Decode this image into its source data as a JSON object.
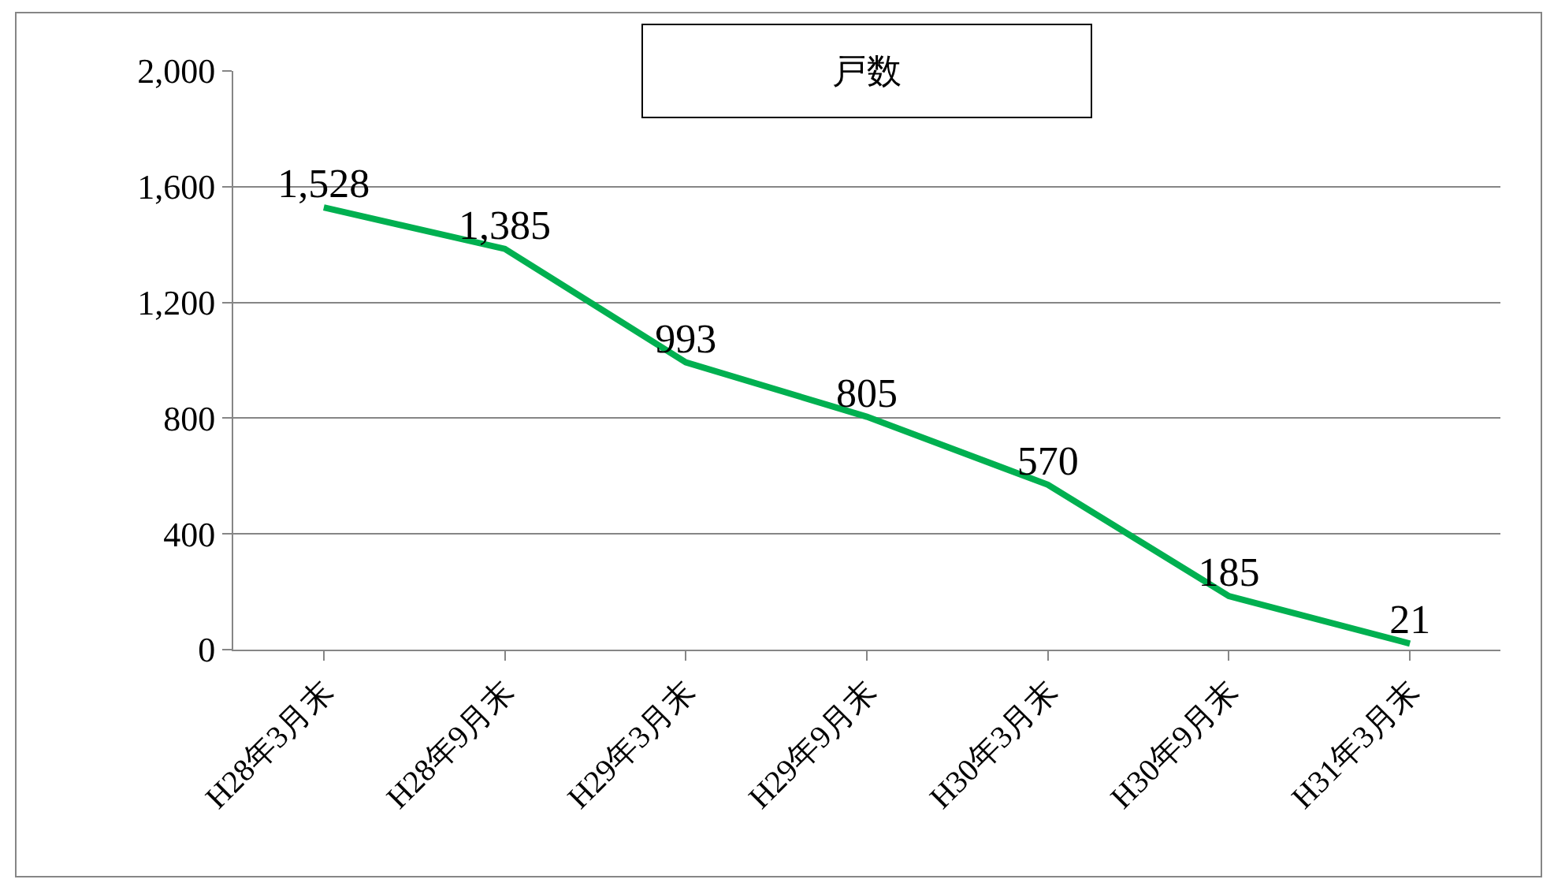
{
  "chart_data": {
    "type": "line",
    "title": "戸数",
    "categories": [
      "H28年3月末",
      "H28年9月末",
      "H29年3月末",
      "H29年9月末",
      "H30年3月末",
      "H30年9月末",
      "H31年3月末"
    ],
    "series": [
      {
        "color": "#00b050",
        "values": [
          1528,
          1385,
          993,
          805,
          570,
          185,
          21
        ],
        "value_labels": [
          "1,528",
          "1,385",
          "993",
          "805",
          "570",
          "185",
          "21"
        ]
      }
    ],
    "ylim": [
      0,
      2000
    ],
    "yticks": [
      {
        "value": 0,
        "label": "0"
      },
      {
        "value": 400,
        "label": "400"
      },
      {
        "value": 800,
        "label": "800"
      },
      {
        "value": 1200,
        "label": "1,200"
      },
      {
        "value": 1600,
        "label": "1,600"
      },
      {
        "value": 2000,
        "label": "2,000"
      }
    ],
    "grid": "y",
    "marker": "none",
    "line_style": "solid"
  }
}
